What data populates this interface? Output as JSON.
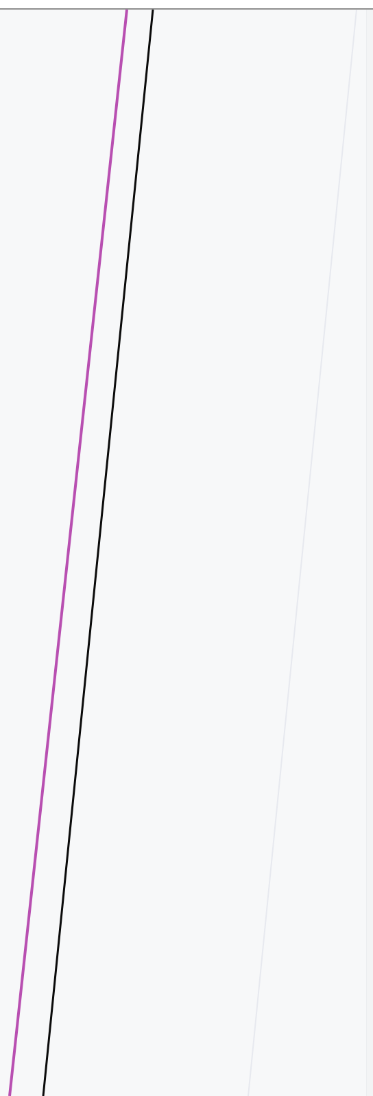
{
  "colors": {
    "background": "#f7f8f9",
    "frame_border": "#8f8f8f",
    "magenta_line": "#b84fb1",
    "black_line": "#0b0b0b",
    "faint_line": "#e7e9ef"
  },
  "lines": [
    {
      "name": "magenta-stroke",
      "color_key": "magenta_line"
    },
    {
      "name": "black-stroke",
      "color_key": "black_line"
    },
    {
      "name": "faint-stroke",
      "color_key": "faint_line"
    }
  ]
}
